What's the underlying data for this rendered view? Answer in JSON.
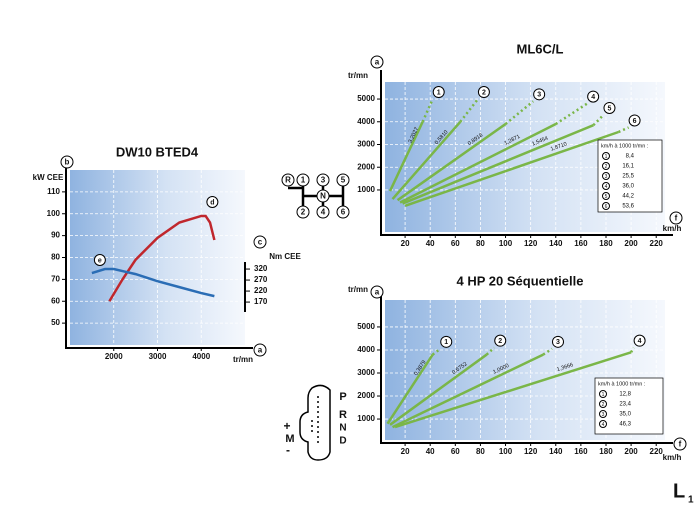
{
  "chart_data": [
    {
      "type": "line",
      "title": "DW10 BTED4",
      "x_label": "tr/mn",
      "y_label": "kW CEE",
      "y2_label": "Nm CEE",
      "x_marker": "a",
      "y_marker": "b",
      "y2_marker": "c",
      "xlim": [
        1000,
        5000
      ],
      "xticks": [
        2000,
        3000,
        4000
      ],
      "ylim": [
        40,
        120
      ],
      "yticks": [
        50,
        60,
        70,
        80,
        90,
        100,
        110
      ],
      "y2lim": [
        -25,
        770
      ],
      "y2ticks": [
        170,
        220,
        270,
        320
      ],
      "grid": true,
      "series": [
        {
          "name": "d",
          "color": "#c0272d",
          "x": [
            1900,
            2200,
            2500,
            3000,
            3500,
            4000,
            4100,
            4200,
            4300
          ],
          "values": [
            60,
            70,
            79,
            89,
            96,
            99,
            99,
            96,
            88
          ]
        },
        {
          "name": "e",
          "color": "#2a6db5",
          "axis": "y2",
          "x": [
            1500,
            1800,
            2000,
            2500,
            3000,
            3500,
            4000,
            4300
          ],
          "values": [
            302,
            320,
            320,
            297,
            265,
            238,
            211,
            197
          ]
        }
      ]
    },
    {
      "type": "line",
      "title": "ML6C/L",
      "x_label": "km/h",
      "y_label": "tr/mn",
      "x_marker": "f",
      "y_marker": "a",
      "xlim": [
        4,
        227
      ],
      "xticks": [
        20,
        40,
        60,
        80,
        100,
        120,
        140,
        160,
        180,
        200,
        220
      ],
      "ylim": [
        -850,
        5750
      ],
      "yticks": [
        1000,
        2000,
        3000,
        4000,
        5000
      ],
      "grid": true,
      "dashed_tail": true,
      "series": [
        {
          "name": "1",
          "color": "#7ab648",
          "annotation": "3,2027",
          "x": [
            8,
            34,
            42
          ],
          "values": [
            950,
            4000,
            5000
          ]
        },
        {
          "name": "2",
          "color": "#7ab648",
          "annotation": "0,5810",
          "x": [
            10,
            64,
            78
          ],
          "values": [
            600,
            4000,
            5000
          ]
        },
        {
          "name": "3",
          "color": "#7ab648",
          "annotation": "0,8918",
          "x": [
            14,
            100,
            122
          ],
          "values": [
            550,
            3900,
            4900
          ]
        },
        {
          "name": "4",
          "color": "#7ab648",
          "annotation": "1,2871",
          "x": [
            16,
            140,
            165
          ],
          "values": [
            450,
            3900,
            4800
          ]
        },
        {
          "name": "5",
          "color": "#7ab648",
          "annotation": "1,5454",
          "x": [
            18,
            170,
            178
          ],
          "values": [
            400,
            3850,
            4300
          ]
        },
        {
          "name": "6",
          "color": "#7ab648",
          "annotation": "1,8710",
          "x": [
            20,
            190,
            198
          ],
          "values": [
            300,
            3550,
            3750
          ]
        }
      ],
      "table": {
        "title": "km/h à 1000 tr/mn :",
        "rows": [
          [
            "1",
            "8,4"
          ],
          [
            "2",
            "16,1"
          ],
          [
            "3",
            "25,5"
          ],
          [
            "4",
            "36,0"
          ],
          [
            "5",
            "44,2"
          ],
          [
            "6",
            "53,6"
          ]
        ]
      }
    },
    {
      "type": "line",
      "title": "4 HP 20 Séquentielle",
      "x_label": "km/h",
      "y_label": "tr/mn",
      "x_marker": "f",
      "y_marker": "a",
      "xlim": [
        4,
        227
      ],
      "xticks": [
        20,
        40,
        60,
        80,
        100,
        120,
        140,
        160,
        180,
        200,
        220
      ],
      "ylim": [
        90,
        6170
      ],
      "yticks": [
        1000,
        2000,
        3000,
        4000,
        5000
      ],
      "grid": true,
      "dashed_tail": true,
      "series": [
        {
          "name": "1",
          "color": "#7ab648",
          "annotation": "0,3879",
          "x": [
            6,
            42,
            48
          ],
          "values": [
            800,
            3800,
            4050
          ]
        },
        {
          "name": "2",
          "color": "#7ab648",
          "annotation": "0,6752",
          "x": [
            8,
            85,
            91
          ],
          "values": [
            750,
            3800,
            4100
          ]
        },
        {
          "name": "3",
          "color": "#7ab648",
          "annotation": "1,0000",
          "x": [
            10,
            130,
            137
          ],
          "values": [
            650,
            3800,
            4050
          ]
        },
        {
          "name": "4",
          "color": "#7ab648",
          "annotation": "1,3666",
          "x": [
            12,
            200,
            202
          ],
          "values": [
            650,
            3900,
            4100
          ]
        }
      ],
      "table": {
        "title": "km/h à 1000 tr/mn :",
        "rows": [
          [
            "1",
            "12,8"
          ],
          [
            "2",
            "23,4"
          ],
          [
            "3",
            "35,0"
          ],
          [
            "4",
            "46,3"
          ]
        ]
      }
    }
  ],
  "shift_pattern": [
    "R",
    "1",
    "3",
    "5",
    "N",
    "2",
    "4",
    "6"
  ],
  "sequential": [
    "P",
    "R",
    "N",
    "D",
    "+",
    "M",
    "-"
  ],
  "page_label": "L",
  "page_sub": "1"
}
